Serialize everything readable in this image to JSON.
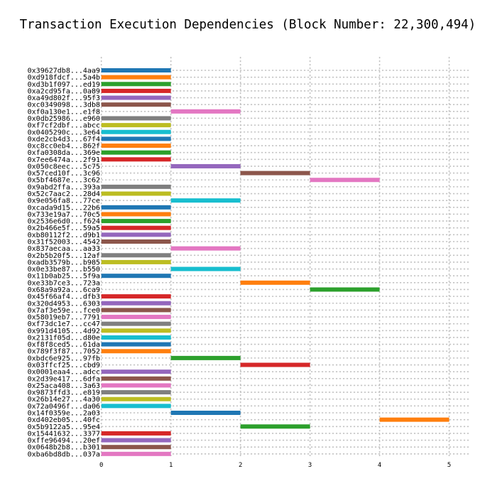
{
  "chart_data": {
    "type": "bar",
    "orientation": "horizontal-gantt",
    "title": "Transaction Execution Dependencies (Block Number: 22,300,494)",
    "xlabel": "",
    "ylabel": "",
    "xlim": [
      -0.15,
      5.3
    ],
    "x_ticks": [
      0,
      1,
      2,
      3,
      4,
      5
    ],
    "grid": true,
    "colors": [
      "#1f77b4",
      "#ff7f0e",
      "#2ca02c",
      "#d62728",
      "#9467bd",
      "#8c564b",
      "#e377c2",
      "#7f7f7f",
      "#bcbd22",
      "#17becf"
    ],
    "tasks": [
      {
        "label": "0x39627db8...4aa9",
        "start": 0,
        "end": 1
      },
      {
        "label": "0xd918fdcf...5a4b",
        "start": 0,
        "end": 1
      },
      {
        "label": "0xd3b1f097...ed19",
        "start": 0,
        "end": 1
      },
      {
        "label": "0xa2cd95fa...0a89",
        "start": 0,
        "end": 1
      },
      {
        "label": "0xa49d802f...95f3",
        "start": 0,
        "end": 1
      },
      {
        "label": "0xc0349098...3db8",
        "start": 0,
        "end": 1
      },
      {
        "label": "0xf0a130e1...e1f8",
        "start": 1,
        "end": 2
      },
      {
        "label": "0x0db25986...e960",
        "start": 0,
        "end": 1
      },
      {
        "label": "0xf7cf2dbf...abcc",
        "start": 0,
        "end": 1
      },
      {
        "label": "0x0405290c...3e64",
        "start": 0,
        "end": 1
      },
      {
        "label": "0xde2cb4d3...67f4",
        "start": 0,
        "end": 1
      },
      {
        "label": "0xc8cc0eb4...862f",
        "start": 0,
        "end": 1
      },
      {
        "label": "0xfa0308da...369e",
        "start": 0,
        "end": 1
      },
      {
        "label": "0x7ee6474a...2f91",
        "start": 0,
        "end": 1
      },
      {
        "label": "0x050c8eec...5c75",
        "start": 1,
        "end": 2
      },
      {
        "label": "0x57ced10f...3c96",
        "start": 2,
        "end": 3
      },
      {
        "label": "0x5bf4687e...3c62",
        "start": 3,
        "end": 4
      },
      {
        "label": "0x9abd2ffa...393a",
        "start": 0,
        "end": 1
      },
      {
        "label": "0x52c7aac2...28d4",
        "start": 0,
        "end": 1
      },
      {
        "label": "0x9e056fa8...77ce",
        "start": 1,
        "end": 2
      },
      {
        "label": "0xcada9d15...22b6",
        "start": 0,
        "end": 1
      },
      {
        "label": "0x733e19a7...70c5",
        "start": 0,
        "end": 1
      },
      {
        "label": "0x2536e6d0...f624",
        "start": 0,
        "end": 1
      },
      {
        "label": "0x2b466e5f...59a5",
        "start": 0,
        "end": 1
      },
      {
        "label": "0xb80112f2...d9b1",
        "start": 0,
        "end": 1
      },
      {
        "label": "0x31f52003...4542",
        "start": 0,
        "end": 1
      },
      {
        "label": "0x837aecaa...aa33",
        "start": 1,
        "end": 2
      },
      {
        "label": "0x2b5b20f5...12af",
        "start": 0,
        "end": 1
      },
      {
        "label": "0xadb3579b...b985",
        "start": 0,
        "end": 1
      },
      {
        "label": "0x0e33be87...b550",
        "start": 1,
        "end": 2
      },
      {
        "label": "0x11b0ab25...5f9a",
        "start": 0,
        "end": 1
      },
      {
        "label": "0xe33b7ce3...723a",
        "start": 2,
        "end": 3
      },
      {
        "label": "0x68a9a92a...6ca9",
        "start": 3,
        "end": 4
      },
      {
        "label": "0x45f66af4...dfb3",
        "start": 0,
        "end": 1
      },
      {
        "label": "0x320d4953...6303",
        "start": 0,
        "end": 1
      },
      {
        "label": "0x7af3e59e...fce0",
        "start": 0,
        "end": 1
      },
      {
        "label": "0x58019eb7...7791",
        "start": 0,
        "end": 1
      },
      {
        "label": "0xf73dc1e7...cc47",
        "start": 0,
        "end": 1
      },
      {
        "label": "0x991d4105...4d92",
        "start": 0,
        "end": 1
      },
      {
        "label": "0x2131f05d...d80e",
        "start": 0,
        "end": 1
      },
      {
        "label": "0xf8f8ced5...61da",
        "start": 0,
        "end": 1
      },
      {
        "label": "0x789f3f87...7052",
        "start": 0,
        "end": 1
      },
      {
        "label": "0xbdc6e925...97fb",
        "start": 1,
        "end": 2
      },
      {
        "label": "0x03ffcf25...cbd9",
        "start": 2,
        "end": 3
      },
      {
        "label": "0x0001eaa4...adcc",
        "start": 0,
        "end": 1
      },
      {
        "label": "0x2d39e417...6dfa",
        "start": 0,
        "end": 1
      },
      {
        "label": "0x25aca408...3a63",
        "start": 0,
        "end": 1
      },
      {
        "label": "0x9873ffd3...e819",
        "start": 0,
        "end": 1
      },
      {
        "label": "0x26b14e27...4a30",
        "start": 0,
        "end": 1
      },
      {
        "label": "0x72a0496f...da06",
        "start": 0,
        "end": 1
      },
      {
        "label": "0x14f0359e...2a03",
        "start": 1,
        "end": 2
      },
      {
        "label": "0xd402eb05...40fc",
        "start": 4,
        "end": 5
      },
      {
        "label": "0x5b9122a5...95e4",
        "start": 2,
        "end": 3
      },
      {
        "label": "0x15441632...3377",
        "start": 0,
        "end": 1
      },
      {
        "label": "0xffe96494...20ef",
        "start": 0,
        "end": 1
      },
      {
        "label": "0x0648b2b8...b301",
        "start": 0,
        "end": 1
      },
      {
        "label": "0xba6bd8db...037a",
        "start": 0,
        "end": 1
      }
    ]
  }
}
